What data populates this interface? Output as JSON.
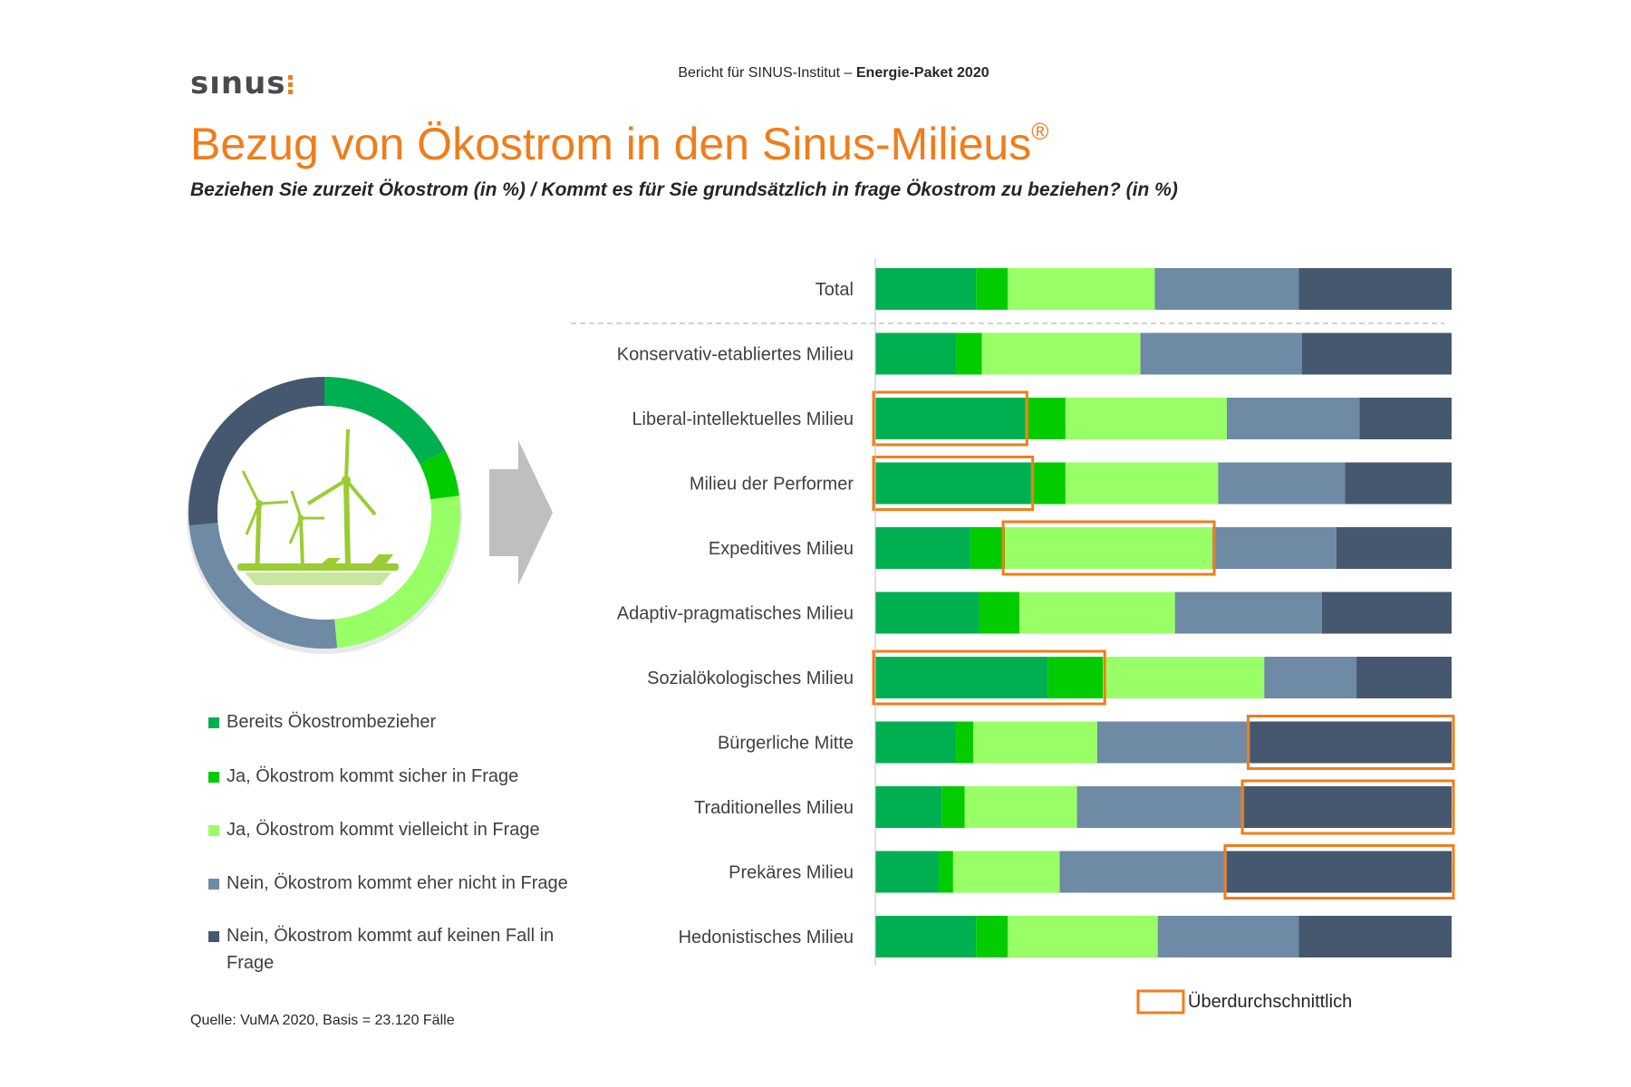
{
  "header": {
    "logo": "sınus",
    "report_prefix": "Bericht für SINUS-Institut –",
    "report_name": "Energie-Paket 2020"
  },
  "title": "Bezug von Ökostrom in den Sinus-Milieus",
  "title_mark": "®",
  "subtitle": "Beziehen Sie zurzeit Ökostrom (in %) / Kommt es für Sie grundsätzlich in frage Ökostrom zu beziehen? (in %)",
  "source": "Quelle: VuMA 2020, Basis = 23.120 Fälle",
  "highlight_legend": "Überdurchschnittlich",
  "icons": [
    "wind-turbine-icon",
    "arrow-right-icon"
  ],
  "colors": {
    "accent": "#f07d1a",
    "series": [
      "#00b050",
      "#00cc00",
      "#99ff66",
      "#6e8aa4",
      "#45586f"
    ]
  },
  "chart_data": {
    "type": "bar",
    "orientation": "horizontal",
    "stacked": true,
    "normalized_to": 100,
    "categories": [
      "Total",
      "Konservativ-etabliertes Milieu",
      "Liberal-intellektuelles Milieu",
      "Milieu der Performer",
      "Expeditives Milieu",
      "Adaptiv-pragmatisches Milieu",
      "Sozialökologisches Milieu",
      "Bürgerliche Mitte",
      "Traditionelles Milieu",
      "Prekäres Milieu",
      "Hedonistisches Milieu"
    ],
    "series": [
      {
        "name": "Bereits Ökostrombezieher",
        "values": [
          17.5,
          14,
          26,
          27,
          16.5,
          18,
          30,
          14,
          11.5,
          11,
          17.5
        ]
      },
      {
        "name": "Ja, Ökostrom kommt sicher in Frage",
        "values": [
          5.5,
          4.5,
          7,
          6,
          6,
          7,
          9.5,
          3,
          4,
          2.5,
          5.5
        ]
      },
      {
        "name": "Ja, Ökostrom kommt vielleicht in Frage",
        "values": [
          25.5,
          27.5,
          28,
          26.5,
          36,
          27,
          28,
          21.5,
          19.5,
          18.5,
          26
        ]
      },
      {
        "name": "Nein, Ökostrom kommt eher nicht in Frage",
        "values": [
          25,
          28,
          23,
          22,
          21.5,
          25.5,
          16,
          26.5,
          29,
          29,
          24.5
        ]
      },
      {
        "name": "Nein, Ökostrom kommt auf keinen Fall in Frage",
        "values": [
          26.5,
          26,
          16,
          18.5,
          20,
          22.5,
          16.5,
          35,
          36,
          39,
          26.5
        ]
      }
    ],
    "highlights": [
      {
        "category": "Liberal-intellektuelles Milieu",
        "series": [
          "Bereits Ökostrombezieher"
        ]
      },
      {
        "category": "Milieu der Performer",
        "series": [
          "Bereits Ökostrombezieher"
        ]
      },
      {
        "category": "Expeditives Milieu",
        "series": [
          "Ja, Ökostrom kommt vielleicht in Frage"
        ]
      },
      {
        "category": "Sozialökologisches Milieu",
        "series": [
          "Bereits Ökostrombezieher",
          "Ja, Ökostrom kommt sicher in Frage"
        ]
      },
      {
        "category": "Bürgerliche Mitte",
        "series": [
          "Nein, Ökostrom kommt auf keinen Fall in Frage"
        ]
      },
      {
        "category": "Traditionelles Milieu",
        "series": [
          "Nein, Ökostrom kommt auf keinen Fall in Frage"
        ]
      },
      {
        "category": "Prekäres Milieu",
        "series": [
          "Nein, Ökostrom kommt auf keinen Fall in Frage"
        ]
      }
    ],
    "donut": {
      "series": [
        "Bereits Ökostrombezieher",
        "Ja, Ökostrom kommt sicher in Frage",
        "Ja, Ökostrom kommt vielleicht in Frage",
        "Nein, Ökostrom kommt eher nicht in Frage",
        "Nein, Ökostrom kommt auf keinen Fall in Frage"
      ],
      "values": [
        17.5,
        5.5,
        25.5,
        25,
        26.5
      ]
    },
    "grid": false,
    "legend_position": "left"
  }
}
